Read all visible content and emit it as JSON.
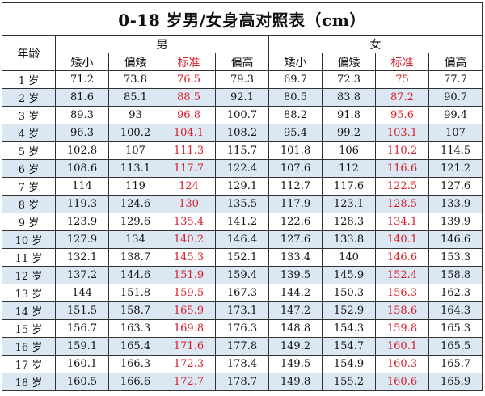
{
  "title": "0-18 岁男/女身高对照表（cm）",
  "age_header": "年龄",
  "groups": [
    "男",
    "女"
  ],
  "categories": [
    "矮小",
    "偏矮",
    "标准",
    "偏高"
  ],
  "std_color": "#d81f2a",
  "stripe_color": "#dbe8f3",
  "rows": [
    {
      "age": "1 岁",
      "m": [
        "71.2",
        "73.8",
        "76.5",
        "79.3"
      ],
      "f": [
        "69.7",
        "72.3",
        "75",
        "77.7"
      ]
    },
    {
      "age": "2 岁",
      "m": [
        "81.6",
        "85.1",
        "88.5",
        "92.1"
      ],
      "f": [
        "80.5",
        "83.8",
        "87.2",
        "90.7"
      ]
    },
    {
      "age": "3 岁",
      "m": [
        "89.3",
        "93",
        "96.8",
        "100.7"
      ],
      "f": [
        "88.2",
        "91.8",
        "95.6",
        "99.4"
      ]
    },
    {
      "age": "4 岁",
      "m": [
        "96.3",
        "100.2",
        "104.1",
        "108.2"
      ],
      "f": [
        "95.4",
        "99.2",
        "103.1",
        "107"
      ]
    },
    {
      "age": "5 岁",
      "m": [
        "102.8",
        "107",
        "111.3",
        "115.7"
      ],
      "f": [
        "101.8",
        "106",
        "110.2",
        "114.5"
      ]
    },
    {
      "age": "6 岁",
      "m": [
        "108.6",
        "113.1",
        "117.7",
        "122.4"
      ],
      "f": [
        "107.6",
        "112",
        "116.6",
        "121.2"
      ]
    },
    {
      "age": "7 岁",
      "m": [
        "114",
        "119",
        "124",
        "129.1"
      ],
      "f": [
        "112.7",
        "117.6",
        "122.5",
        "127.6"
      ]
    },
    {
      "age": "8 岁",
      "m": [
        "119.3",
        "124.6",
        "130",
        "135.5"
      ],
      "f": [
        "117.9",
        "123.1",
        "128.5",
        "133.9"
      ]
    },
    {
      "age": "9 岁",
      "m": [
        "123.9",
        "129.6",
        "135.4",
        "141.2"
      ],
      "f": [
        "122.6",
        "128.3",
        "134.1",
        "139.9"
      ]
    },
    {
      "age": "10 岁",
      "m": [
        "127.9",
        "134",
        "140.2",
        "146.4"
      ],
      "f": [
        "127.6",
        "133.8",
        "140.1",
        "146.6"
      ]
    },
    {
      "age": "11 岁",
      "m": [
        "132.1",
        "138.7",
        "145.3",
        "152.1"
      ],
      "f": [
        "133.4",
        "140",
        "146.6",
        "153.3"
      ]
    },
    {
      "age": "12 岁",
      "m": [
        "137.2",
        "144.6",
        "151.9",
        "159.4"
      ],
      "f": [
        "139.5",
        "145.9",
        "152.4",
        "158.8"
      ]
    },
    {
      "age": "13 岁",
      "m": [
        "144",
        "151.8",
        "159.5",
        "167.3"
      ],
      "f": [
        "144.2",
        "150.3",
        "156.3",
        "162.3"
      ]
    },
    {
      "age": "14 岁",
      "m": [
        "151.5",
        "158.7",
        "165.9",
        "173.1"
      ],
      "f": [
        "147.2",
        "152.9",
        "158.6",
        "164.3"
      ]
    },
    {
      "age": "15 岁",
      "m": [
        "156.7",
        "163.3",
        "169.8",
        "176.3"
      ],
      "f": [
        "148.8",
        "154.3",
        "159.8",
        "165.3"
      ]
    },
    {
      "age": "16 岁",
      "m": [
        "159.1",
        "165.4",
        "171.6",
        "177.8"
      ],
      "f": [
        "149.2",
        "154.7",
        "160.1",
        "165.5"
      ]
    },
    {
      "age": "17 岁",
      "m": [
        "160.1",
        "166.3",
        "172.3",
        "178.4"
      ],
      "f": [
        "149.5",
        "154.9",
        "160.3",
        "165.7"
      ]
    },
    {
      "age": "18 岁",
      "m": [
        "160.5",
        "166.6",
        "172.7",
        "178.7"
      ],
      "f": [
        "149.8",
        "155.2",
        "160.6",
        "165.9"
      ]
    }
  ]
}
